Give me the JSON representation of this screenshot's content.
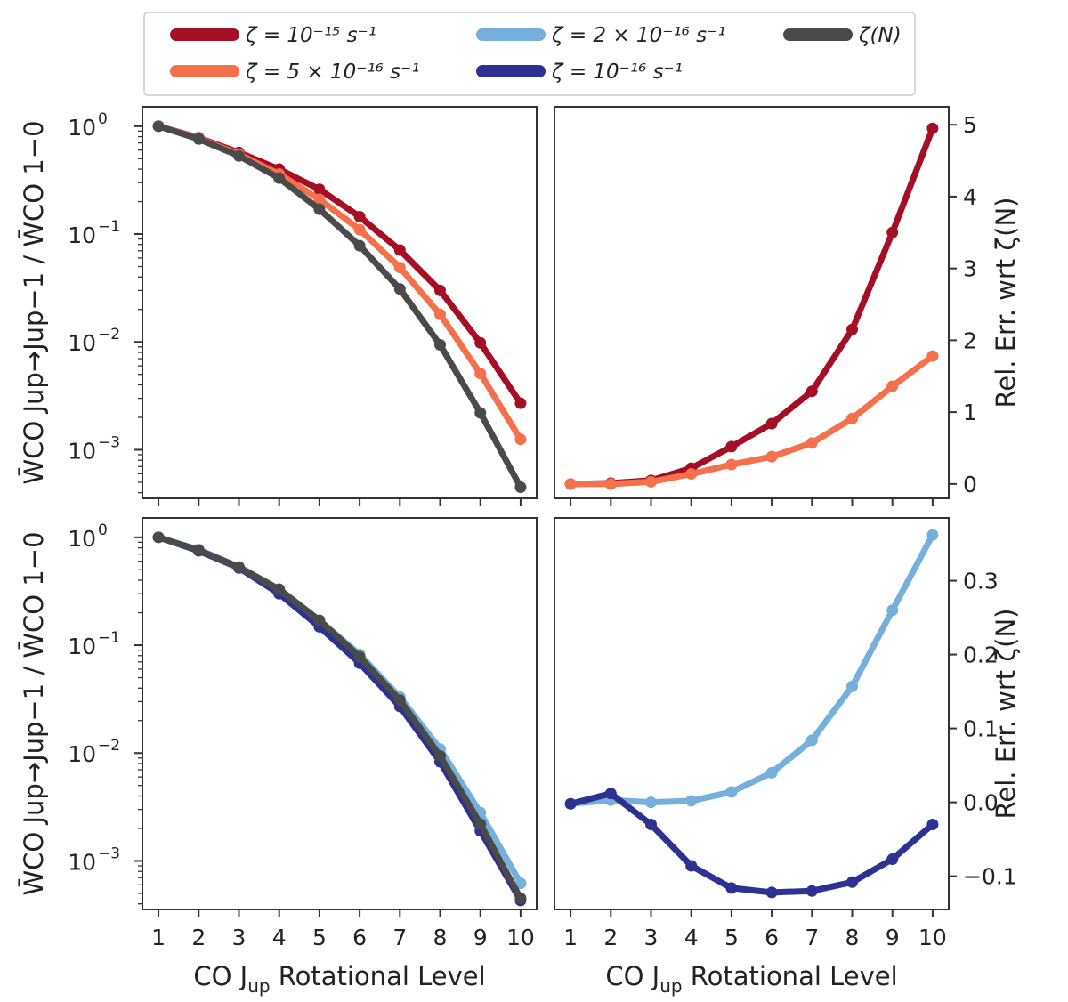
{
  "legend": {
    "entries": [
      {
        "label": "ζ = 10⁻¹⁵ s⁻¹",
        "color": "#a50f26"
      },
      {
        "label": "ζ = 2 × 10⁻¹⁶ s⁻¹",
        "color": "#74b0db"
      },
      {
        "label": "ζ(N)",
        "color": "#4a4a4a"
      },
      {
        "label": "ζ = 5 × 10⁻¹⁶ s⁻¹",
        "color": "#f4714b"
      },
      {
        "label": "ζ = 10⁻¹⁶ s⁻¹",
        "color": "#2d3192"
      }
    ]
  },
  "chart_data": [
    {
      "id": "top-left",
      "type": "line",
      "yscale": "log",
      "xlabel": "",
      "ylabel": "W̄CO Jup→Jup−1 / W̄CO 1−0",
      "x": [
        1,
        2,
        3,
        4,
        5,
        6,
        7,
        8,
        9,
        10
      ],
      "xlim": [
        0.6,
        10.4
      ],
      "ylim_exp": [
        -3.45,
        0.18
      ],
      "yticks_exp": [
        0,
        -1,
        -2,
        -3
      ],
      "yticklabels": [
        "10",
        "10",
        "10",
        "10"
      ],
      "ytickexps": [
        "0",
        "−1",
        "−2",
        "−3"
      ],
      "series": [
        {
          "name": "ζ = 10⁻¹⁵ s⁻¹",
          "color": "#a50f26",
          "values": [
            1.0,
            0.78,
            0.57,
            0.4,
            0.26,
            0.145,
            0.071,
            0.03,
            0.0098,
            0.0027
          ]
        },
        {
          "name": "ζ = 5 × 10⁻¹⁶ s⁻¹",
          "color": "#f4714b",
          "values": [
            1.0,
            0.77,
            0.55,
            0.36,
            0.21,
            0.11,
            0.049,
            0.018,
            0.0051,
            0.00125
          ]
        },
        {
          "name": "ζ(N)",
          "color": "#4a4a4a",
          "values": [
            1.0,
            0.76,
            0.53,
            0.33,
            0.17,
            0.078,
            0.031,
            0.0094,
            0.0022,
            0.00045
          ]
        }
      ]
    },
    {
      "id": "top-right",
      "type": "line",
      "yscale": "linear",
      "xlabel": "",
      "ylabel": "Rel. Err. wrt ζ(N)",
      "x": [
        1,
        2,
        3,
        4,
        5,
        6,
        7,
        8,
        9,
        10
      ],
      "xlim": [
        0.6,
        10.4
      ],
      "ylim": [
        -0.2,
        5.25
      ],
      "yticks": [
        0,
        1,
        2,
        3,
        4,
        5
      ],
      "yticklabels": [
        "0",
        "1",
        "2",
        "3",
        "4",
        "5"
      ],
      "series": [
        {
          "name": "ζ = 10⁻¹⁵ s⁻¹",
          "color": "#a50f26",
          "values": [
            0.0,
            0.01,
            0.05,
            0.22,
            0.52,
            0.84,
            1.29,
            2.15,
            3.5,
            4.95
          ]
        },
        {
          "name": "ζ = 5 × 10⁻¹⁶ s⁻¹",
          "color": "#f4714b",
          "values": [
            0.0,
            0.0,
            0.03,
            0.14,
            0.27,
            0.38,
            0.57,
            0.91,
            1.36,
            1.78
          ]
        }
      ]
    },
    {
      "id": "bottom-left",
      "type": "line",
      "yscale": "log",
      "xlabel": "CO J",
      "xlabel_sub": "up",
      "xlabel_tail": " Rotational Level",
      "ylabel": "W̄CO Jup→Jup−1 / W̄CO 1−0",
      "x": [
        1,
        2,
        3,
        4,
        5,
        6,
        7,
        8,
        9,
        10
      ],
      "xticklabels": [
        "1",
        "2",
        "3",
        "4",
        "5",
        "6",
        "7",
        "8",
        "9",
        "10"
      ],
      "xlim": [
        0.6,
        10.4
      ],
      "ylim_exp": [
        -3.45,
        0.18
      ],
      "yticks_exp": [
        0,
        -1,
        -2,
        -3
      ],
      "yticklabels": [
        "10",
        "10",
        "10",
        "10"
      ],
      "ytickexps": [
        "0",
        "−1",
        "−2",
        "−3"
      ],
      "series": [
        {
          "name": "ζ = 10⁻¹⁶ s⁻¹",
          "color": "#2d3192",
          "values": [
            1.0,
            0.75,
            0.52,
            0.3,
            0.148,
            0.068,
            0.027,
            0.0083,
            0.0019,
            0.00043
          ]
        },
        {
          "name": "ζ = 2 × 10⁻¹⁶ s⁻¹",
          "color": "#74b0db",
          "values": [
            1.0,
            0.77,
            0.53,
            0.33,
            0.17,
            0.082,
            0.033,
            0.0109,
            0.0028,
            0.00062
          ]
        },
        {
          "name": "ζ(N)",
          "color": "#4a4a4a",
          "values": [
            1.0,
            0.76,
            0.53,
            0.33,
            0.17,
            0.078,
            0.031,
            0.0094,
            0.0022,
            0.00045
          ]
        }
      ]
    },
    {
      "id": "bottom-right",
      "type": "line",
      "yscale": "linear",
      "xlabel": "CO J",
      "xlabel_sub": "up",
      "xlabel_tail": " Rotational Level",
      "ylabel": "Rel. Err. wrt ζ(N)",
      "x": [
        1,
        2,
        3,
        4,
        5,
        6,
        7,
        8,
        9,
        10
      ],
      "xticklabels": [
        "1",
        "2",
        "3",
        "4",
        "5",
        "6",
        "7",
        "8",
        "9",
        "10"
      ],
      "xlim": [
        0.6,
        10.4
      ],
      "ylim": [
        -0.145,
        0.385
      ],
      "yticks": [
        0.3,
        0.2,
        0.1,
        0.0,
        -0.1
      ],
      "yticklabels": [
        "0.3",
        "0.2",
        "0.1",
        "0.0",
        "−0.1"
      ],
      "series": [
        {
          "name": "ζ = 2 × 10⁻¹⁶ s⁻¹",
          "color": "#74b0db",
          "values": [
            -0.002,
            0.003,
            0.0,
            0.002,
            0.014,
            0.04,
            0.084,
            0.157,
            0.26,
            0.362
          ]
        },
        {
          "name": "ζ = 10⁻¹⁶ s⁻¹",
          "color": "#2d3192",
          "values": [
            -0.002,
            0.012,
            -0.03,
            -0.086,
            -0.116,
            -0.122,
            -0.12,
            -0.108,
            -0.077,
            -0.03
          ]
        }
      ]
    }
  ]
}
